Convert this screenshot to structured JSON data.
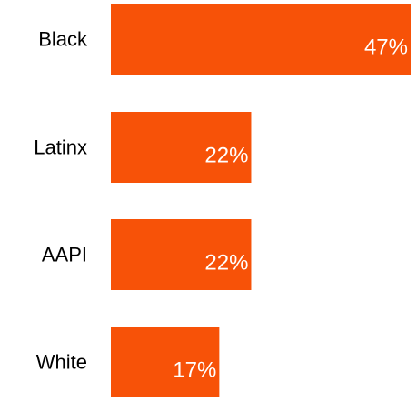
{
  "chart_data": {
    "type": "bar",
    "orientation": "horizontal",
    "categories": [
      "Black",
      "Latinx",
      "AAPI",
      "White"
    ],
    "values": [
      47,
      22,
      22,
      17
    ],
    "value_labels": [
      "47%",
      "22%",
      "22%",
      "17%"
    ],
    "unit": "%",
    "title": "",
    "xlabel": "",
    "ylabel": "",
    "xlim": [
      0,
      47
    ],
    "grid": false,
    "legend": "none",
    "bar_color": "#F75208"
  }
}
